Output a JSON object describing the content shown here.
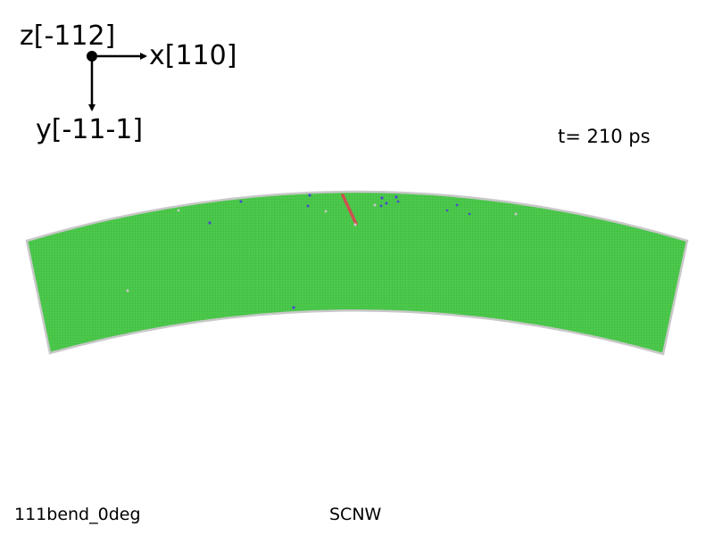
{
  "axes": {
    "z_label": "z[-112]",
    "x_label": "x[110]",
    "y_label": "y[-11-1]"
  },
  "time_label": "t= 210 ps",
  "footer": {
    "left": "111bend_0deg",
    "center": "SCNW"
  },
  "colors": {
    "fcc_atoms": "#4cc94c",
    "surface_atoms": "#c8c8c8",
    "defect_atoms": "#4a4ad0",
    "stacking_fault": "#d05050",
    "axes": "#000000"
  }
}
